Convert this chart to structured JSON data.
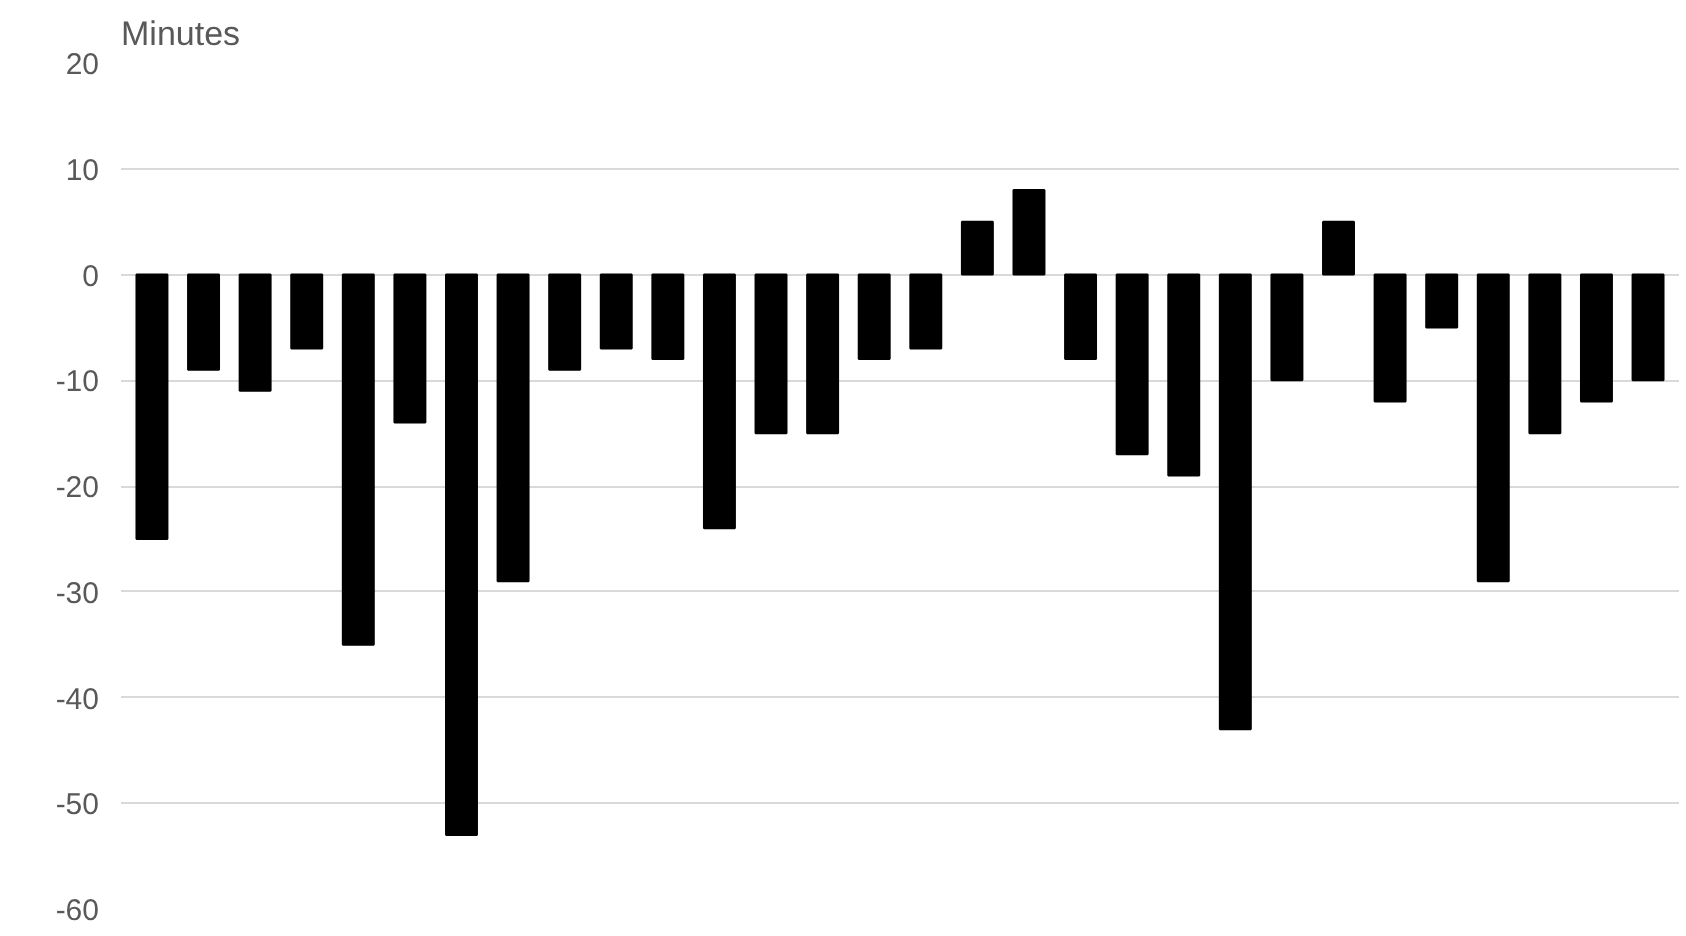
{
  "chart_data": {
    "type": "bar",
    "ylabel": "Minutes",
    "categories": [
      null,
      null,
      null,
      null,
      null,
      null,
      null,
      null,
      null,
      null,
      null,
      null,
      null,
      null,
      null,
      null,
      null,
      null,
      null,
      null,
      null,
      null,
      null,
      null,
      null,
      null,
      null,
      null,
      null,
      null
    ],
    "values": [
      -25,
      -9,
      -11,
      -7,
      -35,
      -14,
      -53,
      -29,
      -9,
      -7,
      -8,
      -24,
      -15,
      -15,
      -8,
      -7,
      5,
      8,
      -8,
      -17,
      -19,
      -43,
      -10,
      5,
      -12,
      -5,
      -29,
      -15,
      -12,
      -10
    ],
    "color": "#000000",
    "ylim": [
      -60,
      20
    ],
    "yticks": [
      -60,
      -50,
      -40,
      -30,
      -20,
      -10,
      0,
      10,
      20
    ],
    "grid": "y",
    "tick_labels": "y"
  }
}
